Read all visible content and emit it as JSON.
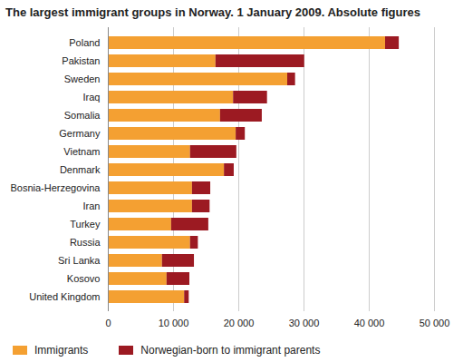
{
  "chart_data": {
    "type": "bar",
    "title": "The largest immigrant groups in Norway. 1 January 2009. Absolute figures",
    "orientation": "horizontal",
    "stacked": true,
    "grid": true,
    "legend": "bottom",
    "categories": [
      "Poland",
      "Pakistan",
      "Sweden",
      "Iraq",
      "Somalia",
      "Germany",
      "Vietnam",
      "Denmark",
      "Bosnia-Herzegovina",
      "Iran",
      "Turkey",
      "Russia",
      "Sri Lanka",
      "Kosovo",
      "United Kingdom"
    ],
    "series": [
      {
        "name": "Immigrants",
        "color": "#f4a032",
        "values": [
          42500,
          16500,
          27500,
          19200,
          17200,
          19600,
          12600,
          17800,
          12900,
          12900,
          9700,
          12600,
          8300,
          9000,
          11700
        ]
      },
      {
        "name": "Norwegian-born to immigrant parents",
        "color": "#9c1a22",
        "values": [
          2100,
          13600,
          1200,
          5200,
          6400,
          1400,
          7100,
          1500,
          2800,
          2700,
          5700,
          1200,
          4900,
          3500,
          700
        ]
      }
    ],
    "xlim": [
      0,
      50000
    ],
    "xticks": [
      0,
      {
        "value": 10000,
        "label": "10 000"
      },
      {
        "value": 20000,
        "label": "20 000"
      },
      {
        "value": 30000,
        "label": "30 000"
      },
      {
        "value": 40000,
        "label": "40 000"
      },
      {
        "value": 50000,
        "label": "50 000"
      }
    ]
  }
}
